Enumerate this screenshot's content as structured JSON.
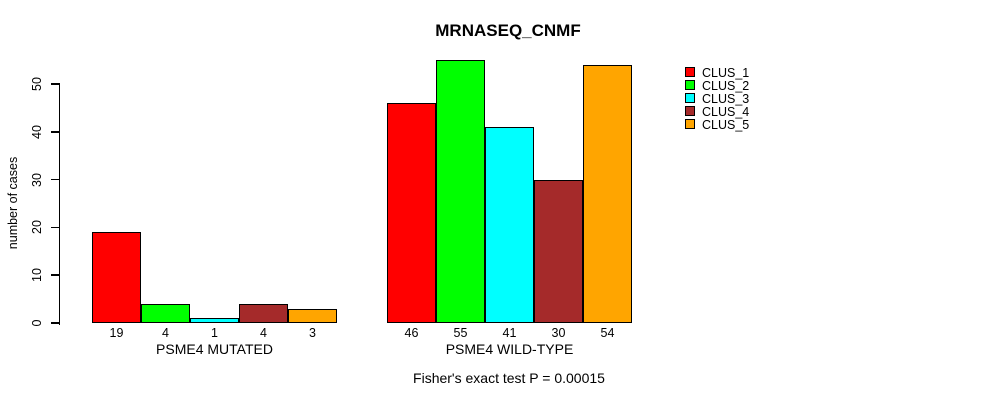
{
  "chart_data": {
    "type": "bar",
    "title": "MRNASEQ_CNMF",
    "ylabel": "number of cases",
    "xlabel": "",
    "ylim": [
      0,
      55
    ],
    "yticks": [
      0,
      10,
      20,
      30,
      40,
      50
    ],
    "grid": false,
    "legend_position": "right",
    "categories": [
      "PSME4 MUTATED",
      "PSME4 WILD-TYPE"
    ],
    "series": [
      {
        "name": "CLUS_1",
        "color": "#FF0000",
        "values": [
          19,
          46
        ]
      },
      {
        "name": "CLUS_2",
        "color": "#00FF00",
        "values": [
          4,
          55
        ]
      },
      {
        "name": "CLUS_3",
        "color": "#00FFFF",
        "values": [
          1,
          41
        ]
      },
      {
        "name": "CLUS_4",
        "color": "#A52A2A",
        "values": [
          4,
          30
        ]
      },
      {
        "name": "CLUS_5",
        "color": "#FFA500",
        "values": [
          3,
          54
        ]
      }
    ],
    "bar_value_labels": [
      [
        19,
        4,
        1,
        4,
        3
      ],
      [
        46,
        55,
        41,
        30,
        54
      ]
    ],
    "annotation": "Fisher's exact test P = 0.00015"
  }
}
